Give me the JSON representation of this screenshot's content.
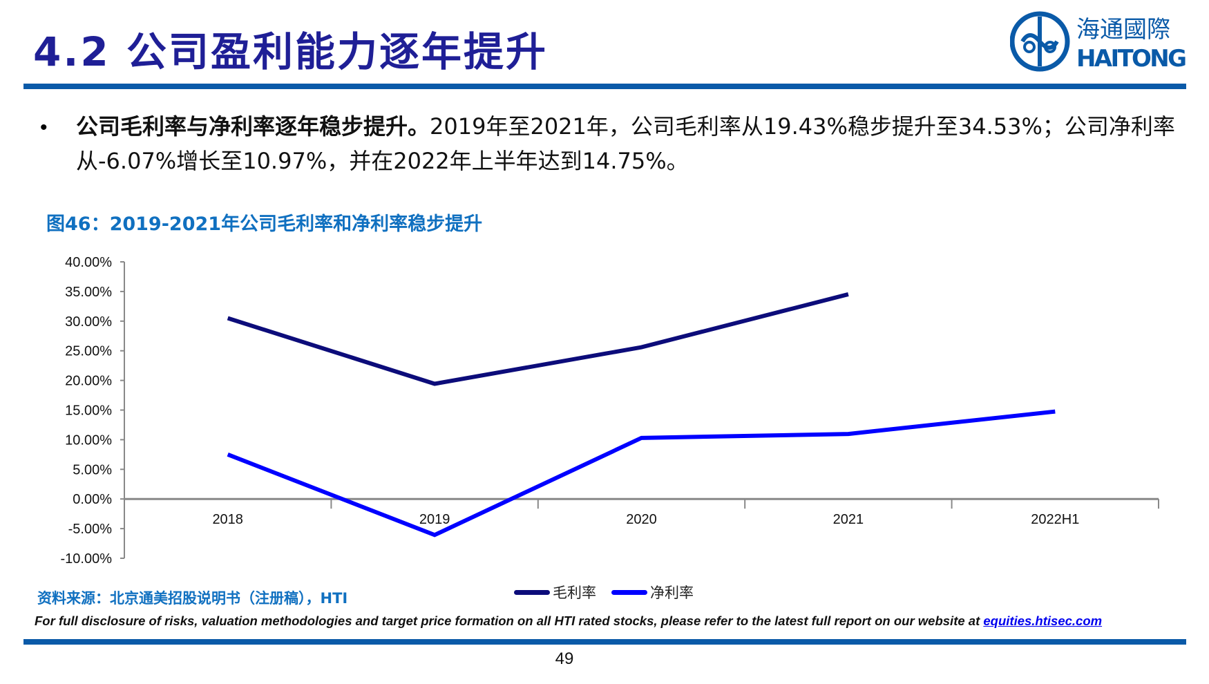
{
  "header": {
    "title": "4.2 公司盈利能力逐年提升",
    "logo": {
      "cn": "海通國際",
      "en": "HAITONG"
    }
  },
  "bullet": {
    "bold": "公司毛利率与净利率逐年稳步提升。",
    "text": "2019年至2021年，公司毛利率从19.43%稳步提升至34.53%；公司净利率从-6.07%增长至10.97%，并在2022年上半年达到14.75%。"
  },
  "figure": {
    "title": "图46：2019-2021年公司毛利率和净利率稳步提升",
    "source": "资料来源：北京通美招股说明书（注册稿），HTI"
  },
  "chart_data": {
    "type": "line",
    "categories": [
      "2018",
      "2019",
      "2020",
      "2021",
      "2022H1"
    ],
    "ylim": [
      -10,
      40
    ],
    "yticks": [
      "40.00%",
      "35.00%",
      "30.00%",
      "25.00%",
      "20.00%",
      "15.00%",
      "10.00%",
      "5.00%",
      "0.00%",
      "-5.00%",
      "-10.00%"
    ],
    "grid": false,
    "legend": "bottom",
    "series": [
      {
        "name": "毛利率",
        "color": "#0c0c7a",
        "values": [
          30.5,
          19.43,
          25.6,
          34.53,
          null
        ]
      },
      {
        "name": "净利率",
        "color": "#0000ff",
        "values": [
          7.5,
          -6.07,
          10.3,
          10.97,
          14.75
        ]
      }
    ]
  },
  "footer": {
    "disclaimer": "For full disclosure of risks, valuation methodologies and target price formation on all HTI rated stocks, please refer to the latest full report on our website at ",
    "link": "equities.htisec.com",
    "page": "49"
  },
  "colors": {
    "brand": "#0a5aa8",
    "title": "#1f1f96",
    "caption": "#1070c0"
  }
}
